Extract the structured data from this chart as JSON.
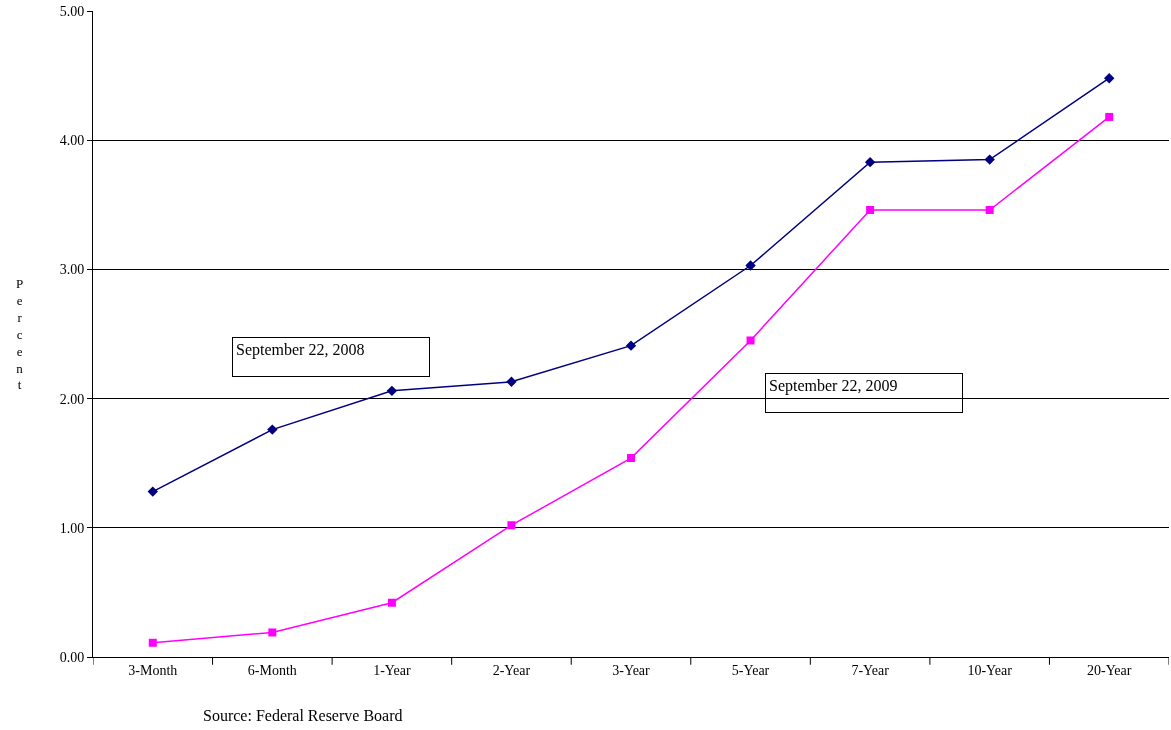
{
  "chart_data": {
    "type": "line",
    "ylabel": "Percent",
    "categories": [
      "3-Month",
      "6-Month",
      "1-Year",
      "2-Year",
      "3-Year",
      "5-Year",
      "7-Year",
      "10-Year",
      "20-Year"
    ],
    "series": [
      {
        "name": "September 22, 2008",
        "color": "#000080",
        "marker": "diamond",
        "values": [
          1.28,
          1.76,
          2.06,
          2.13,
          2.41,
          3.03,
          3.83,
          3.85,
          4.48
        ]
      },
      {
        "name": "September 22, 2009",
        "color": "#ff00ff",
        "marker": "square",
        "values": [
          0.11,
          0.19,
          0.42,
          1.02,
          1.54,
          2.45,
          3.46,
          3.46,
          4.18
        ]
      }
    ],
    "ylim": [
      0,
      5
    ],
    "yticks": [
      {
        "value": 0,
        "label": "0.00"
      },
      {
        "value": 1,
        "label": "1.00"
      },
      {
        "value": 2,
        "label": "2.00"
      },
      {
        "value": 3,
        "label": "3.00"
      },
      {
        "value": 4,
        "label": "4.00"
      },
      {
        "value": 5,
        "label": "5.00"
      }
    ],
    "grid": "y",
    "legend": false,
    "line_style": "solid",
    "annotations": [
      "Source: Federal Reserve Board"
    ]
  }
}
